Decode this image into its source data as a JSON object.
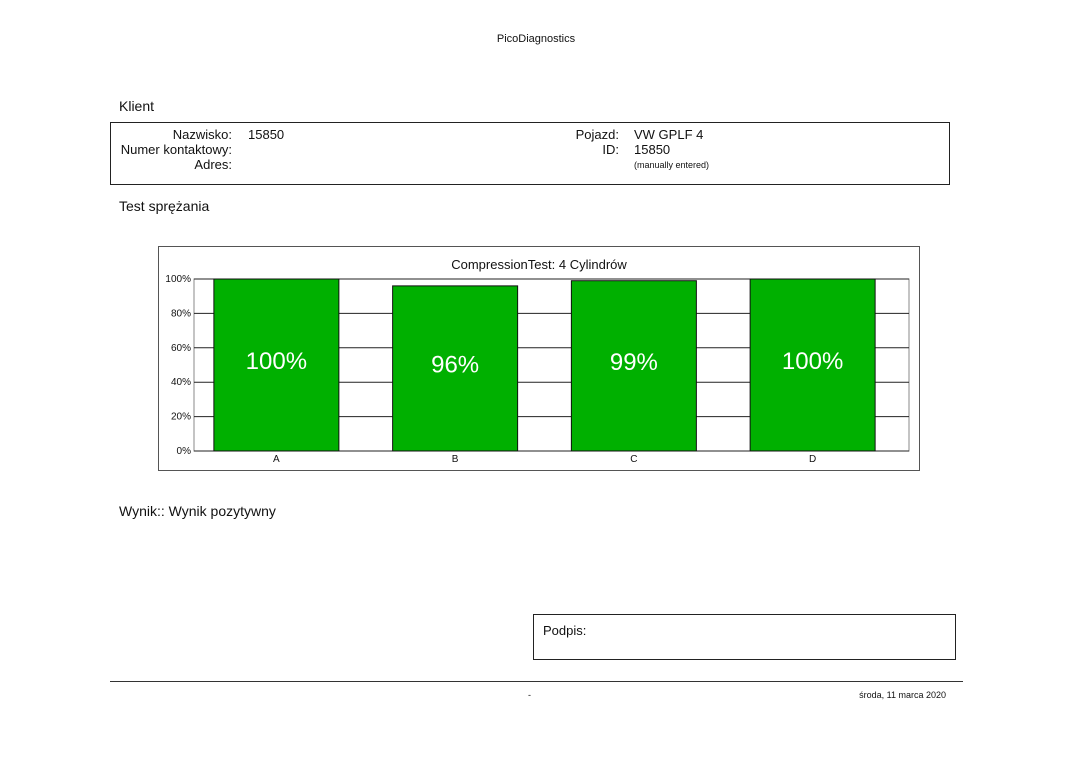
{
  "header": {
    "app_title": "PicoDiagnostics"
  },
  "client_section": {
    "title": "Klient",
    "surname_label": "Nazwisko:",
    "surname_value": "15850",
    "contact_label": "Numer kontaktowy:",
    "contact_value": "",
    "address_label": "Adres:",
    "address_value": "",
    "vehicle_label": "Pojazd:",
    "vehicle_value": "VW GPLF 4",
    "id_label": "ID:",
    "id_value": "15850",
    "id_note": "(manually entered)"
  },
  "test_section": {
    "title": "Test sprężania"
  },
  "chart_data": {
    "type": "bar",
    "title": "CompressionTest: 4 Cylindrów",
    "categories": [
      "A",
      "B",
      "C",
      "D"
    ],
    "values": [
      100,
      96,
      99,
      100
    ],
    "value_labels": [
      "100%",
      "96%",
      "99%",
      "100%"
    ],
    "yticks": [
      "0%",
      "20%",
      "40%",
      "60%",
      "80%",
      "100%"
    ],
    "ylim": [
      0,
      100
    ],
    "bar_color": "#00b000",
    "grid": true
  },
  "result": {
    "text": "Wynik:: Wynik pozytywny"
  },
  "signature": {
    "label": "Podpis:"
  },
  "footer": {
    "mid": "-",
    "date": "środa, 11 marca 2020"
  }
}
